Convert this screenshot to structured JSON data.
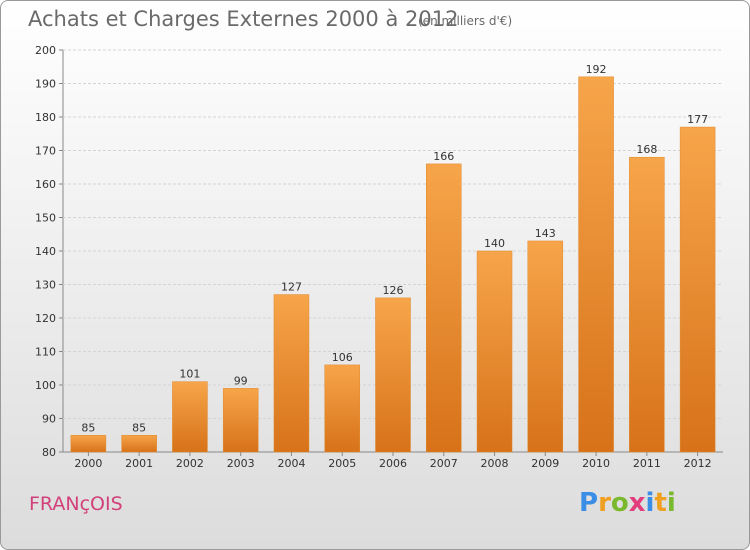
{
  "header": {
    "title": "Achats et Charges Externes 2000 à 2012",
    "subtitle": "(en milliers d'€)"
  },
  "footer": {
    "commune": "FRANçOIS",
    "logo": {
      "letters": [
        "P",
        "r",
        "o",
        "x",
        "i",
        "t",
        "i"
      ],
      "colors": [
        "#3a8ee6",
        "#f0a020",
        "#7ab82e",
        "#e23d7c",
        "#3a8ee6",
        "#f0a020",
        "#7ab82e"
      ]
    }
  },
  "colors": {
    "bar": "#f29a3c",
    "bar_dark": "#d97a1e",
    "grid": "#cfcfcf"
  },
  "chart_data": {
    "type": "bar",
    "title": "Achats et Charges Externes 2000 à 2012",
    "subtitle": "(en milliers d'€)",
    "categories": [
      "2000",
      "2001",
      "2002",
      "2003",
      "2004",
      "2005",
      "2006",
      "2007",
      "2008",
      "2009",
      "2010",
      "2011",
      "2012"
    ],
    "values": [
      85,
      85,
      101,
      99,
      127,
      106,
      126,
      166,
      140,
      143,
      192,
      168,
      177
    ],
    "ylim": [
      80,
      200
    ],
    "yticks": [
      80,
      90,
      100,
      110,
      120,
      130,
      140,
      150,
      160,
      170,
      180,
      190,
      200
    ],
    "grid": true,
    "data_labels": true
  }
}
